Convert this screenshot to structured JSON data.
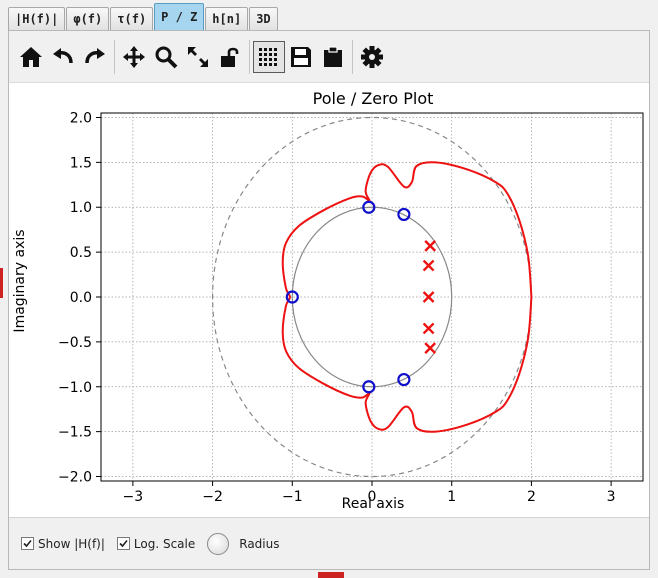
{
  "tabs": [
    {
      "label": "|H(f)|",
      "active": false
    },
    {
      "label": "φ(f)",
      "active": false
    },
    {
      "label": "τ(f)",
      "active": false
    },
    {
      "label": "P / Z",
      "active": true
    },
    {
      "label": "h[n]",
      "active": false
    },
    {
      "label": "3D",
      "active": false
    }
  ],
  "toolbar": {
    "icons": [
      "home-icon",
      "undo-icon",
      "redo-icon",
      "pan-icon",
      "zoom-icon",
      "fullscreen-icon",
      "lock-icon",
      "grid-icon",
      "save-icon",
      "clipboard-icon",
      "gear-icon"
    ]
  },
  "chart_data": {
    "type": "scatter",
    "title": "Pole / Zero Plot",
    "xlabel": "Real axis",
    "ylabel": "Imaginary axis",
    "xlim": [
      -3.4,
      3.4
    ],
    "ylim": [
      -2.05,
      2.05
    ],
    "xticks": [
      -3,
      -2,
      -1,
      0,
      1,
      2,
      3
    ],
    "yticks": [
      -2.0,
      -1.5,
      -1.0,
      -0.5,
      0.0,
      0.5,
      1.0,
      1.5,
      2.0
    ],
    "grid": true,
    "unit_circle_radius": 1.0,
    "dashed_circle_radius": 2.0,
    "zeros": [
      [
        -1.0,
        0.0
      ],
      [
        -0.04,
        1.0
      ],
      [
        -0.04,
        -1.0
      ],
      [
        0.4,
        0.92
      ],
      [
        0.4,
        -0.92
      ]
    ],
    "poles": [
      [
        0.73,
        0.57
      ],
      [
        0.71,
        0.35
      ],
      [
        0.71,
        0.0
      ],
      [
        0.71,
        -0.35
      ],
      [
        0.73,
        -0.57
      ]
    ],
    "magnitude_curve": [
      [
        2.0,
        0.0
      ],
      [
        1.96,
        0.45
      ],
      [
        1.85,
        0.85
      ],
      [
        1.7,
        1.15
      ],
      [
        1.55,
        1.28
      ],
      [
        1.2,
        1.42
      ],
      [
        0.8,
        1.5
      ],
      [
        0.56,
        1.46
      ],
      [
        0.5,
        1.28
      ],
      [
        0.4,
        1.23
      ],
      [
        0.2,
        1.45
      ],
      [
        0.08,
        1.47
      ],
      [
        -0.02,
        1.38
      ],
      [
        -0.08,
        1.18
      ],
      [
        -0.03,
        1.07
      ],
      [
        -0.12,
        1.12
      ],
      [
        -0.28,
        1.1
      ],
      [
        -0.6,
        0.97
      ],
      [
        -0.92,
        0.79
      ],
      [
        -1.08,
        0.6
      ],
      [
        -1.12,
        0.38
      ],
      [
        -1.08,
        0.1
      ],
      [
        -1.03,
        0.0
      ],
      [
        -1.08,
        -0.1
      ],
      [
        -1.12,
        -0.38
      ],
      [
        -1.08,
        -0.6
      ],
      [
        -0.92,
        -0.79
      ],
      [
        -0.6,
        -0.97
      ],
      [
        -0.28,
        -1.1
      ],
      [
        -0.12,
        -1.12
      ],
      [
        -0.03,
        -1.07
      ],
      [
        -0.08,
        -1.18
      ],
      [
        -0.02,
        -1.38
      ],
      [
        0.08,
        -1.47
      ],
      [
        0.2,
        -1.45
      ],
      [
        0.4,
        -1.23
      ],
      [
        0.5,
        -1.28
      ],
      [
        0.56,
        -1.46
      ],
      [
        0.8,
        -1.5
      ],
      [
        1.2,
        -1.42
      ],
      [
        1.55,
        -1.28
      ],
      [
        1.7,
        -1.15
      ],
      [
        1.85,
        -0.85
      ],
      [
        1.96,
        -0.45
      ],
      [
        2.0,
        0.0
      ]
    ]
  },
  "bottom": {
    "show_label": "Show |H(f)|",
    "show_checked": true,
    "log_label": "Log. Scale",
    "log_checked": true,
    "radius_label": "Radius"
  }
}
